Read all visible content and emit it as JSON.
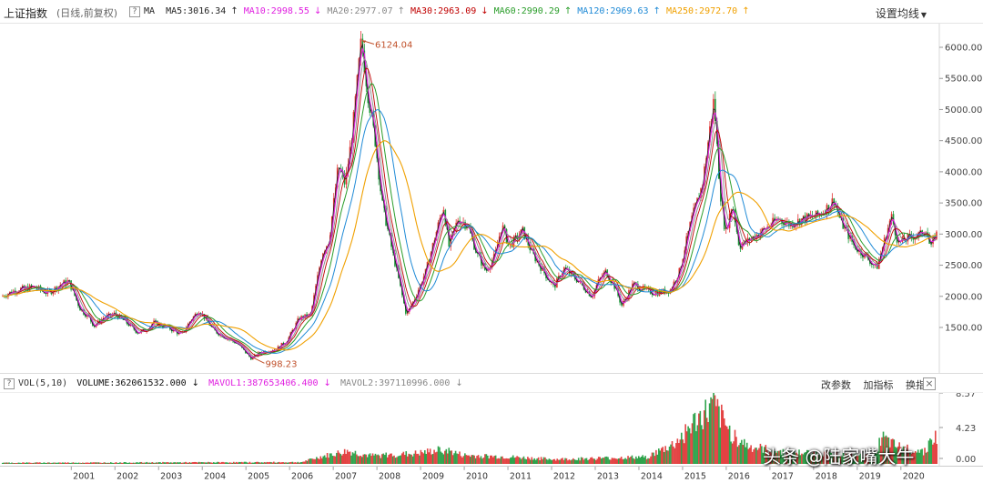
{
  "header": {
    "title": "上证指数",
    "subtitle": "(日线,前复权)",
    "help_label": "?",
    "ma_label": "MA",
    "settings_label": "设置均线",
    "ma_items": [
      {
        "label": "MA5:3016.34",
        "arrow": "↑",
        "color": "#222222"
      },
      {
        "label": "MA10:2998.55",
        "arrow": "↓",
        "color": "#e020e0"
      },
      {
        "label": "MA20:2977.07",
        "arrow": "↑",
        "color": "#888888"
      },
      {
        "label": "MA30:2963.09",
        "arrow": "↓",
        "color": "#c00000"
      },
      {
        "label": "MA60:2990.29",
        "arrow": "↑",
        "color": "#2a9d2a"
      },
      {
        "label": "MA120:2969.63",
        "arrow": "↑",
        "color": "#1f8ad6"
      },
      {
        "label": "MA250:2972.70",
        "arrow": "↑",
        "color": "#f0a000"
      }
    ]
  },
  "main_chart": {
    "y_ticks": [
      "6000.00",
      "5500.00",
      "5000.00",
      "4500.00",
      "4000.00",
      "3500.00",
      "3000.00",
      "2500.00",
      "2000.00",
      "1500.00"
    ],
    "y_values": [
      6000,
      5500,
      5000,
      4500,
      4000,
      3500,
      3000,
      2500,
      2000,
      1500
    ],
    "high_label": "6124.04",
    "high_value": 6124.04,
    "high_year": 2007.8,
    "low_label": "998.23",
    "low_value": 998.23,
    "low_year": 2005.42,
    "price_path": [
      [
        2000.0,
        2000
      ],
      [
        2000.3,
        2100
      ],
      [
        2000.7,
        2150
      ],
      [
        2001.0,
        2050
      ],
      [
        2001.3,
        2200
      ],
      [
        2001.45,
        2245
      ],
      [
        2001.7,
        1800
      ],
      [
        2001.9,
        1650
      ],
      [
        2002.0,
        1520
      ],
      [
        2002.2,
        1650
      ],
      [
        2002.45,
        1720
      ],
      [
        2002.7,
        1580
      ],
      [
        2002.95,
        1420
      ],
      [
        2003.1,
        1450
      ],
      [
        2003.3,
        1580
      ],
      [
        2003.6,
        1500
      ],
      [
        2003.9,
        1380
      ],
      [
        2004.1,
        1620
      ],
      [
        2004.28,
        1780
      ],
      [
        2004.6,
        1450
      ],
      [
        2004.9,
        1320
      ],
      [
        2005.1,
        1250
      ],
      [
        2005.42,
        998
      ],
      [
        2005.6,
        1100
      ],
      [
        2005.95,
        1150
      ],
      [
        2006.2,
        1300
      ],
      [
        2006.45,
        1650
      ],
      [
        2006.7,
        1700
      ],
      [
        2006.95,
        2700
      ],
      [
        2007.1,
        2900
      ],
      [
        2007.3,
        4100
      ],
      [
        2007.45,
        3800
      ],
      [
        2007.6,
        4600
      ],
      [
        2007.8,
        6124
      ],
      [
        2007.95,
        5200
      ],
      [
        2008.1,
        4500
      ],
      [
        2008.25,
        3500
      ],
      [
        2008.45,
        2800
      ],
      [
        2008.6,
        2300
      ],
      [
        2008.78,
        1700
      ],
      [
        2008.95,
        1950
      ],
      [
        2009.2,
        2400
      ],
      [
        2009.45,
        3100
      ],
      [
        2009.58,
        3450
      ],
      [
        2009.7,
        2800
      ],
      [
        2009.9,
        3250
      ],
      [
        2010.1,
        3150
      ],
      [
        2010.3,
        2700
      ],
      [
        2010.5,
        2400
      ],
      [
        2010.7,
        2650
      ],
      [
        2010.85,
        3150
      ],
      [
        2011.0,
        2800
      ],
      [
        2011.3,
        3050
      ],
      [
        2011.5,
        2700
      ],
      [
        2011.75,
        2400
      ],
      [
        2011.98,
        2150
      ],
      [
        2012.2,
        2450
      ],
      [
        2012.5,
        2250
      ],
      [
        2012.8,
        2000
      ],
      [
        2012.95,
        2250
      ],
      [
        2013.1,
        2400
      ],
      [
        2013.3,
        2150
      ],
      [
        2013.45,
        1850
      ],
      [
        2013.7,
        2200
      ],
      [
        2013.95,
        2100
      ],
      [
        2014.2,
        2050
      ],
      [
        2014.5,
        2100
      ],
      [
        2014.7,
        2400
      ],
      [
        2014.95,
        3200
      ],
      [
        2015.2,
        3800
      ],
      [
        2015.45,
        5178
      ],
      [
        2015.58,
        3700
      ],
      [
        2015.7,
        3000
      ],
      [
        2015.85,
        3500
      ],
      [
        2016.0,
        2800
      ],
      [
        2016.2,
        2900
      ],
      [
        2016.5,
        3050
      ],
      [
        2016.85,
        3250
      ],
      [
        2017.1,
        3150
      ],
      [
        2017.4,
        3250
      ],
      [
        2017.7,
        3300
      ],
      [
        2017.95,
        3450
      ],
      [
        2018.05,
        3560
      ],
      [
        2018.2,
        3200
      ],
      [
        2018.5,
        2800
      ],
      [
        2018.8,
        2600
      ],
      [
        2018.98,
        2450
      ],
      [
        2019.15,
        2900
      ],
      [
        2019.3,
        3288
      ],
      [
        2019.45,
        2850
      ],
      [
        2019.7,
        2950
      ],
      [
        2019.95,
        3000
      ],
      [
        2020.05,
        3100
      ],
      [
        2020.15,
        2750
      ],
      [
        2020.25,
        3000
      ]
    ]
  },
  "volume": {
    "indicator_label": "VOL(5,10)",
    "volume_label": "VOLUME:362061532.000",
    "volume_arrow": "↓",
    "mavol1_label": "MAVOL1:387653406.400",
    "mavol1_arrow": "↓",
    "mavol2_label": "MAVOL2:397110996.000",
    "mavol2_arrow": "↓",
    "help_label": "?",
    "tools": [
      "改参数",
      "加指标",
      "换指标"
    ],
    "close_label": "×",
    "y_ticks": [
      "8.57",
      "4.23",
      "0.00"
    ]
  },
  "x_axis": {
    "labels": [
      "2001",
      "2002",
      "2003",
      "2004",
      "2005",
      "2006",
      "2007",
      "2008",
      "2009",
      "2010",
      "2011",
      "2012",
      "2013",
      "2014",
      "2015",
      "2016",
      "2017",
      "2018",
      "2019",
      "2020"
    ],
    "values": [
      2001,
      2002,
      2003,
      2004,
      2005,
      2006,
      2007,
      2008,
      2009,
      2010,
      2011,
      2012,
      2013,
      2014,
      2015,
      2016,
      2017,
      2018,
      2019,
      2020
    ]
  },
  "watermark": "头条 @陆家嘴大牛",
  "colors": {
    "up": "#e03030",
    "down": "#1a9a3a",
    "ma5": "#222222",
    "ma10": "#e020e0",
    "ma20": "#888888",
    "ma30": "#c00000",
    "ma60": "#2a9d2a",
    "ma120": "#1f8ad6",
    "ma250": "#f0a000",
    "annotation": "#c0502a"
  }
}
